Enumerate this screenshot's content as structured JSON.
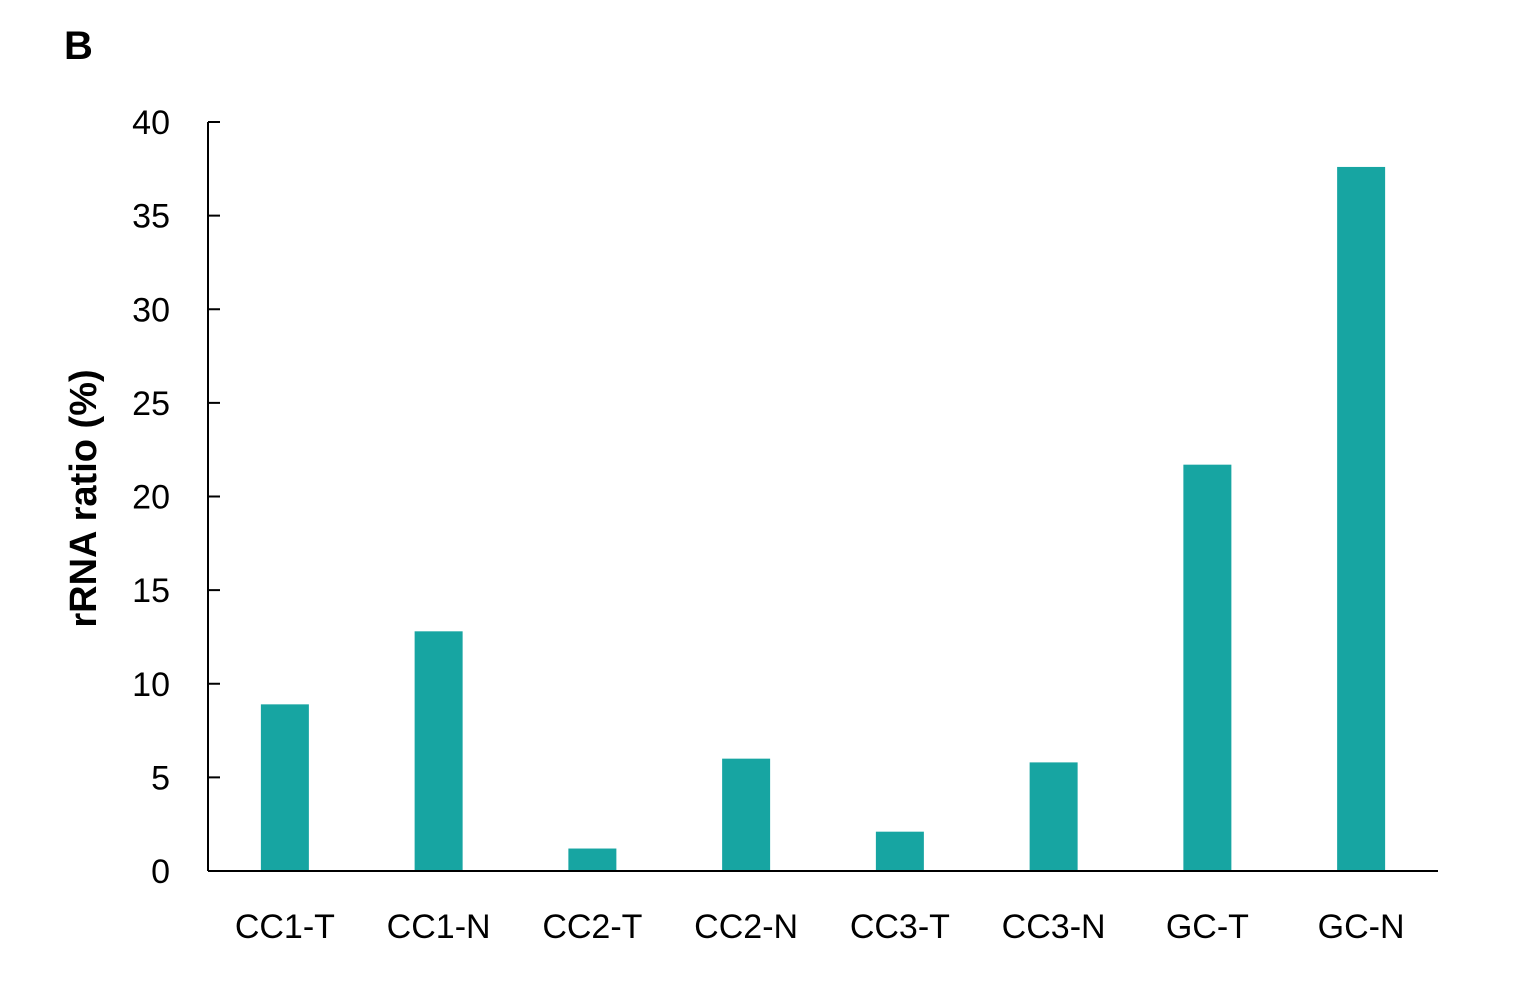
{
  "panel_label": "B",
  "colors": {
    "bar": "#17a5a2",
    "axis": "#000000"
  },
  "chart_data": {
    "type": "bar",
    "title": "",
    "xlabel": "",
    "ylabel": "rRNA ratio (%)",
    "categories": [
      "CC1-T",
      "CC1-N",
      "CC2-T",
      "CC2-N",
      "CC3-T",
      "CC3-N",
      "GC-T",
      "GC-N"
    ],
    "values": [
      8.9,
      12.8,
      1.2,
      6.0,
      2.1,
      5.8,
      21.7,
      37.6
    ],
    "ylim": [
      0,
      40
    ],
    "yticks": [
      0,
      5,
      10,
      15,
      20,
      25,
      30,
      35,
      40
    ],
    "grid": false,
    "legend": "none"
  }
}
